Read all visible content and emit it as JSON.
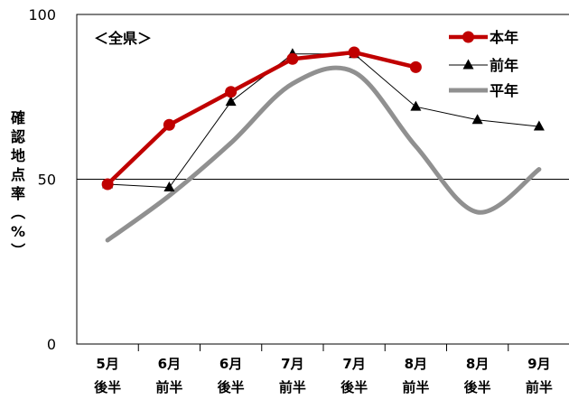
{
  "chart_data": {
    "type": "line",
    "title": "＜全県＞",
    "ylabel": "確認地点率（%）",
    "ylim": [
      0,
      100
    ],
    "yticks": [
      "0",
      "50",
      "100"
    ],
    "categories": [
      [
        "5月",
        "後半"
      ],
      [
        "6月",
        "前半"
      ],
      [
        "6月",
        "後半"
      ],
      [
        "7月",
        "前半"
      ],
      [
        "7月",
        "後半"
      ],
      [
        "8月",
        "前半"
      ],
      [
        "8月",
        "後半"
      ],
      [
        "9月",
        "前半"
      ]
    ],
    "reference_line": 50,
    "legend_position": "top-right",
    "series": [
      {
        "name": "本年",
        "color": "#c00000",
        "marker": "circle",
        "values": [
          48.5,
          66.5,
          76.5,
          86.5,
          88.5,
          84,
          null,
          null
        ]
      },
      {
        "name": "前年",
        "color": "#000000",
        "marker": "triangle",
        "values": [
          48.5,
          47.5,
          73.5,
          88,
          88,
          72,
          68,
          66
        ]
      },
      {
        "name": "平年",
        "color": "#909090",
        "marker": "none",
        "smooth": true,
        "x": [
          0,
          1,
          2,
          3,
          4,
          5,
          6,
          7
        ],
        "values": [
          31.5,
          45,
          61,
          79,
          82.5,
          60,
          40,
          53
        ]
      }
    ]
  }
}
